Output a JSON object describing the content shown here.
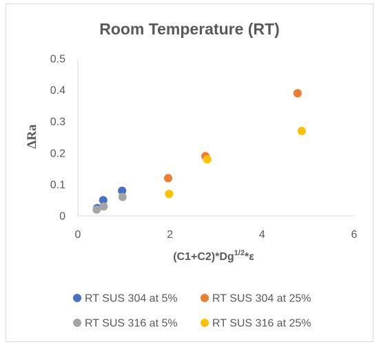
{
  "chart_data": {
    "type": "scatter",
    "title": "Room Temperature (RT)",
    "xlabel_base": "(C1+C2)*Dg",
    "xlabel_sup": "1/2",
    "xlabel_tail": "*ε",
    "ylabel": "ΔRa",
    "xlim": [
      0,
      6
    ],
    "ylim": [
      0,
      0.5
    ],
    "xticks": [
      0,
      2,
      4,
      6
    ],
    "yticks": [
      0,
      0.1,
      0.2,
      0.3,
      0.4,
      0.5
    ],
    "xtick_labels": [
      "0",
      "2",
      "4",
      "6"
    ],
    "ytick_labels": [
      "0",
      "0.1",
      "0.2",
      "0.3",
      "0.4",
      "0.5"
    ],
    "grid": false,
    "legend_position": "bottom",
    "series": [
      {
        "name": "RT SUS 304 at 5%",
        "color": "#4472C4",
        "points": [
          [
            0.42,
            0.025
          ],
          [
            0.55,
            0.05
          ],
          [
            0.96,
            0.08
          ]
        ]
      },
      {
        "name": "RT SUS 304 at 25%",
        "color": "#ED7D31",
        "points": [
          [
            1.96,
            0.12
          ],
          [
            2.77,
            0.19
          ],
          [
            4.77,
            0.39
          ]
        ]
      },
      {
        "name": "RT SUS 316 at 5%",
        "color": "#A5A5A5",
        "points": [
          [
            0.41,
            0.02
          ],
          [
            0.56,
            0.03
          ],
          [
            0.97,
            0.06
          ]
        ]
      },
      {
        "name": "RT SUS 316 at 25%",
        "color": "#FFC000",
        "points": [
          [
            1.98,
            0.07
          ],
          [
            2.81,
            0.18
          ],
          [
            4.86,
            0.27
          ]
        ]
      }
    ]
  }
}
